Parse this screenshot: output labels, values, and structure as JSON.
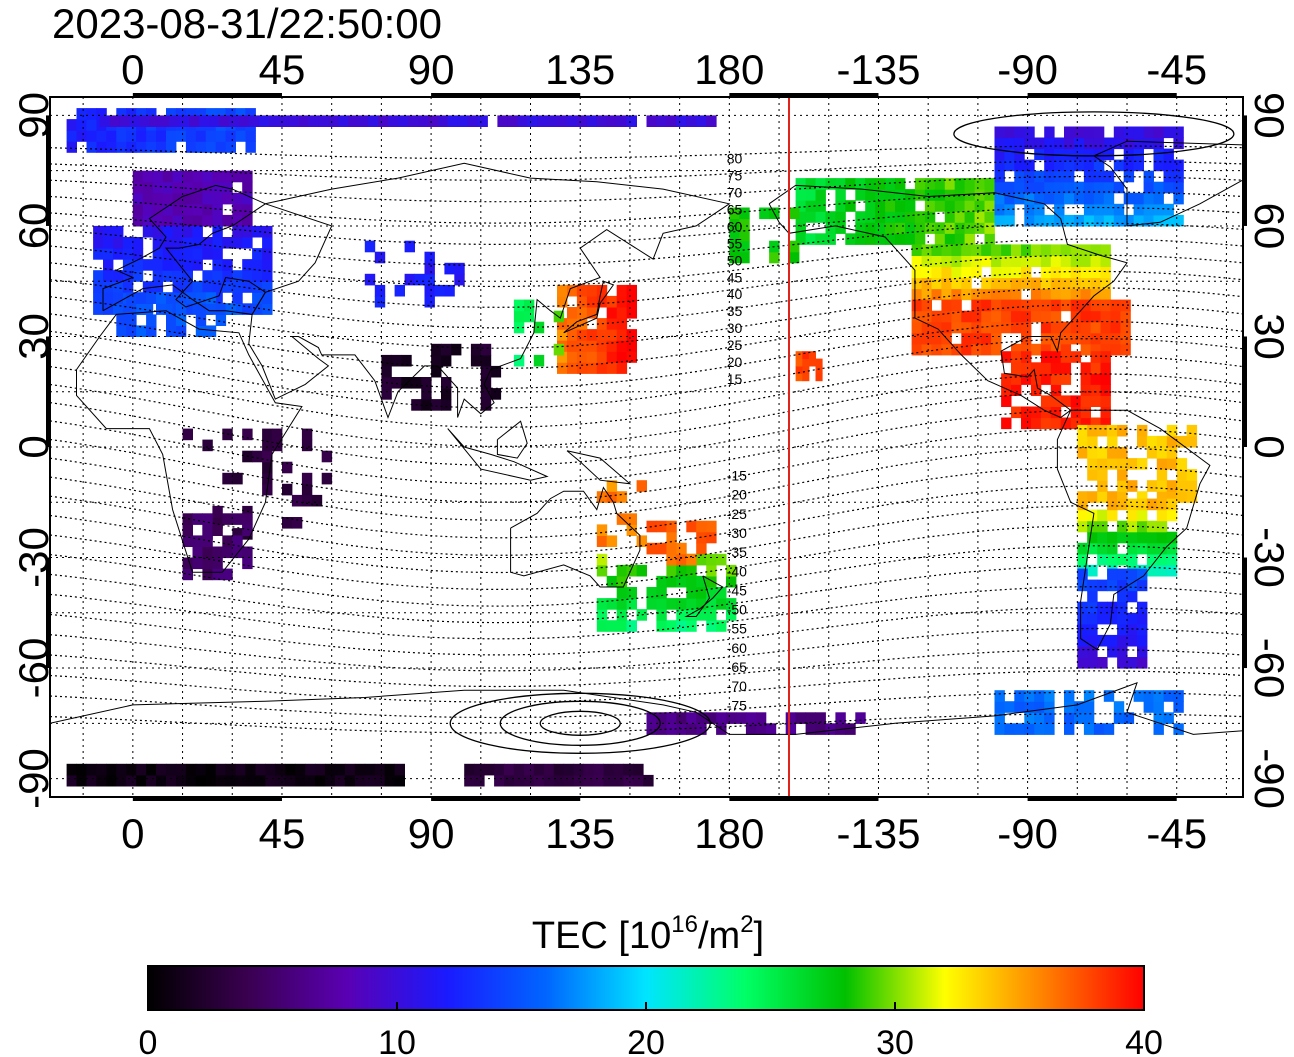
{
  "timestamp": "2023-08-31/22:50:00",
  "map": {
    "lon_ticks": [
      {
        "lon": 0,
        "label": "0"
      },
      {
        "lon": 45,
        "label": "45"
      },
      {
        "lon": 90,
        "label": "90"
      },
      {
        "lon": 135,
        "label": "135"
      },
      {
        "lon": 180,
        "label": "180"
      },
      {
        "lon": 225,
        "label": "-135"
      },
      {
        "lon": 270,
        "label": "-90"
      },
      {
        "lon": 315,
        "label": "-45"
      }
    ],
    "lat_ticks": [
      {
        "lat": 90,
        "label": "90"
      },
      {
        "lat": 60,
        "label": "60"
      },
      {
        "lat": 30,
        "label": "30"
      },
      {
        "lat": 0,
        "label": "0"
      },
      {
        "lat": -30,
        "label": "-30"
      },
      {
        "lat": -60,
        "label": "-60"
      },
      {
        "lat": -90,
        "label": "-90"
      }
    ],
    "lon_range": [
      -25,
      335
    ],
    "lat_range": [
      -95,
      95
    ],
    "grid": "dotted",
    "meridian_marker_lon": 198,
    "meridian_marker_color": "#e0241c",
    "contour_labels_north": [
      "80",
      "75",
      "70",
      "65",
      "60",
      "55",
      "50",
      "45",
      "40",
      "35",
      "30",
      "25",
      "20",
      "15"
    ],
    "contour_labels_south": [
      "-15",
      "-20",
      "-25",
      "-30",
      "-35",
      "-40",
      "-45",
      "-50",
      "-55",
      "-60",
      "-65",
      "-70",
      "-75"
    ]
  },
  "colorbar": {
    "title_main": "TEC  [10",
    "title_exp": "16",
    "title_unit": "/m",
    "title_exp2": "2",
    "title_close": "]",
    "min": 0,
    "max": 40,
    "tick_labels": [
      "0",
      "10",
      "20",
      "30",
      "40"
    ],
    "colors": [
      "#000000",
      "#3a0050",
      "#5a00b4",
      "#1a1aff",
      "#0066ff",
      "#00e5ff",
      "#00ff66",
      "#00c000",
      "#ffff00",
      "#ff8000",
      "#ff0000"
    ]
  }
}
